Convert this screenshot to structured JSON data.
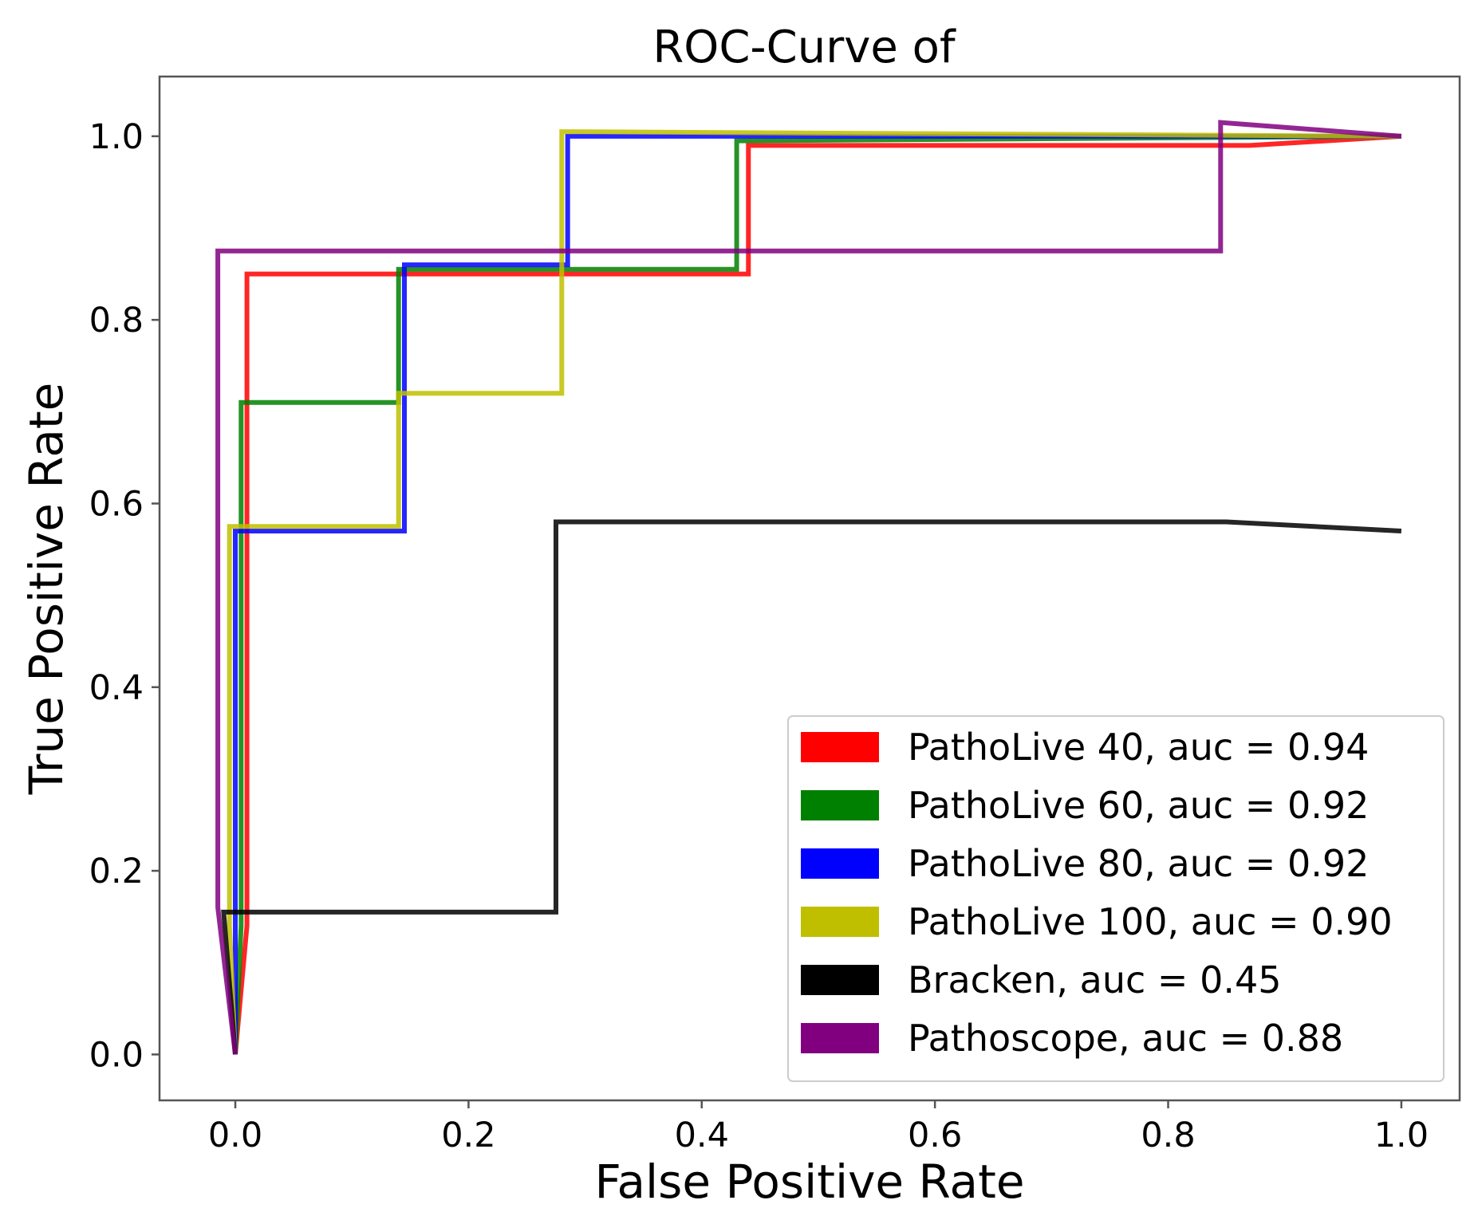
{
  "chart_data": {
    "type": "line",
    "title": "ROC-Curve of",
    "xlabel": "False Positive Rate",
    "ylabel": "True Positive Rate",
    "xlim": [
      -0.065,
      1.05
    ],
    "ylim": [
      -0.05,
      1.065
    ],
    "xticks": [
      0.0,
      0.2,
      0.4,
      0.6,
      0.8,
      1.0
    ],
    "xtick_labels": [
      "0.0",
      "0.2",
      "0.4",
      "0.6",
      "0.8",
      "1.0"
    ],
    "yticks": [
      0.0,
      0.2,
      0.4,
      0.6,
      0.8,
      1.0
    ],
    "ytick_labels": [
      "0.0",
      "0.2",
      "0.4",
      "0.6",
      "0.8",
      "1.0"
    ],
    "grid": false,
    "legend_position": "bottom-right",
    "series": [
      {
        "name": "PathoLive 40",
        "label": "PathoLive 40, auc = 0.94",
        "auc": 0.94,
        "color": "#ff0000",
        "x": [
          0.0,
          0.01,
          0.01,
          0.44,
          0.44,
          0.87,
          1.0
        ],
        "y": [
          0.0,
          0.14,
          0.85,
          0.85,
          0.99,
          0.99,
          1.0
        ]
      },
      {
        "name": "PathoLive 60",
        "label": "PathoLive 60, auc = 0.92",
        "auc": 0.92,
        "color": "#008000",
        "x": [
          0.0,
          0.005,
          0.005,
          0.14,
          0.14,
          0.43,
          0.43,
          1.0
        ],
        "y": [
          0.0,
          0.14,
          0.71,
          0.71,
          0.855,
          0.855,
          0.995,
          1.0
        ]
      },
      {
        "name": "PathoLive 80",
        "label": "PathoLive 80, auc = 0.92",
        "auc": 0.92,
        "color": "#0000ff",
        "x": [
          0.0,
          0.0,
          0.145,
          0.145,
          0.285,
          0.285,
          1.0
        ],
        "y": [
          0.0,
          0.57,
          0.57,
          0.86,
          0.86,
          1.0,
          1.0
        ]
      },
      {
        "name": "PathoLive 100",
        "label": "PathoLive 100, auc = 0.90",
        "auc": 0.9,
        "color": "#bfbf00",
        "x": [
          0.0,
          -0.005,
          -0.005,
          0.14,
          0.14,
          0.28,
          0.28,
          1.0
        ],
        "y": [
          0.0,
          0.14,
          0.575,
          0.575,
          0.72,
          0.72,
          1.005,
          1.0
        ]
      },
      {
        "name": "Bracken",
        "label": "Bracken, auc = 0.45",
        "auc": 0.45,
        "color": "#000000",
        "x": [
          0.0,
          -0.01,
          0.275,
          0.275,
          0.85,
          1.0
        ],
        "y": [
          0.0,
          0.155,
          0.155,
          0.58,
          0.58,
          0.57
        ]
      },
      {
        "name": "Pathoscope",
        "label": "Pathoscope, auc = 0.88",
        "auc": 0.88,
        "color": "#800080",
        "x": [
          0.0,
          -0.015,
          -0.015,
          0.845,
          0.845,
          1.0
        ],
        "y": [
          0.0,
          0.16,
          0.875,
          0.875,
          1.015,
          1.0
        ]
      }
    ]
  }
}
